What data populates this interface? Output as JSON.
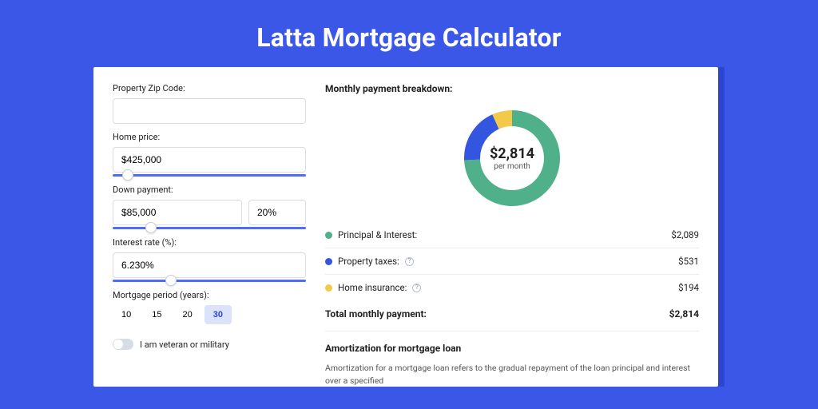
{
  "title": "Latta Mortgage Calculator",
  "colors": {
    "page_bg": "#3a57e8",
    "card_bg": "#ffffff",
    "slider": "#4f6cf5",
    "period_active_bg": "#dbe3fb"
  },
  "form": {
    "zip_label": "Property Zip Code:",
    "zip_value": "",
    "home_price_label": "Home price:",
    "home_price_value": "$425,000",
    "home_price_slider_pct": 8,
    "down_payment_label": "Down payment:",
    "down_payment_value": "$85,000",
    "down_payment_pct_value": "20%",
    "down_payment_slider_pct": 20,
    "interest_label": "Interest rate (%):",
    "interest_value": "6.230%",
    "interest_slider_pct": 30,
    "period_label": "Mortgage period (years):",
    "periods": [
      "10",
      "15",
      "20",
      "30"
    ],
    "period_active_index": 3,
    "veteran_label": "I am veteran or military",
    "veteran_on": false
  },
  "breakdown": {
    "title": "Monthly payment breakdown:",
    "center_value": "$2,814",
    "center_sub": "per month",
    "donut": {
      "type": "donut",
      "radius": 50,
      "stroke_width": 20,
      "slices": [
        {
          "label": "Principal & Interest:",
          "value": "$2,089",
          "pct": 74.2,
          "color": "#4fb08a"
        },
        {
          "label": "Property taxes:",
          "value": "$531",
          "pct": 18.9,
          "color": "#3355e0",
          "info": true
        },
        {
          "label": "Home insurance:",
          "value": "$194",
          "pct": 6.9,
          "color": "#f3c94a",
          "info": true
        }
      ]
    },
    "total_label": "Total monthly payment:",
    "total_value": "$2,814"
  },
  "amortization": {
    "title": "Amortization for mortgage loan",
    "text": "Amortization for a mortgage loan refers to the gradual repayment of the loan principal and interest over a specified"
  }
}
